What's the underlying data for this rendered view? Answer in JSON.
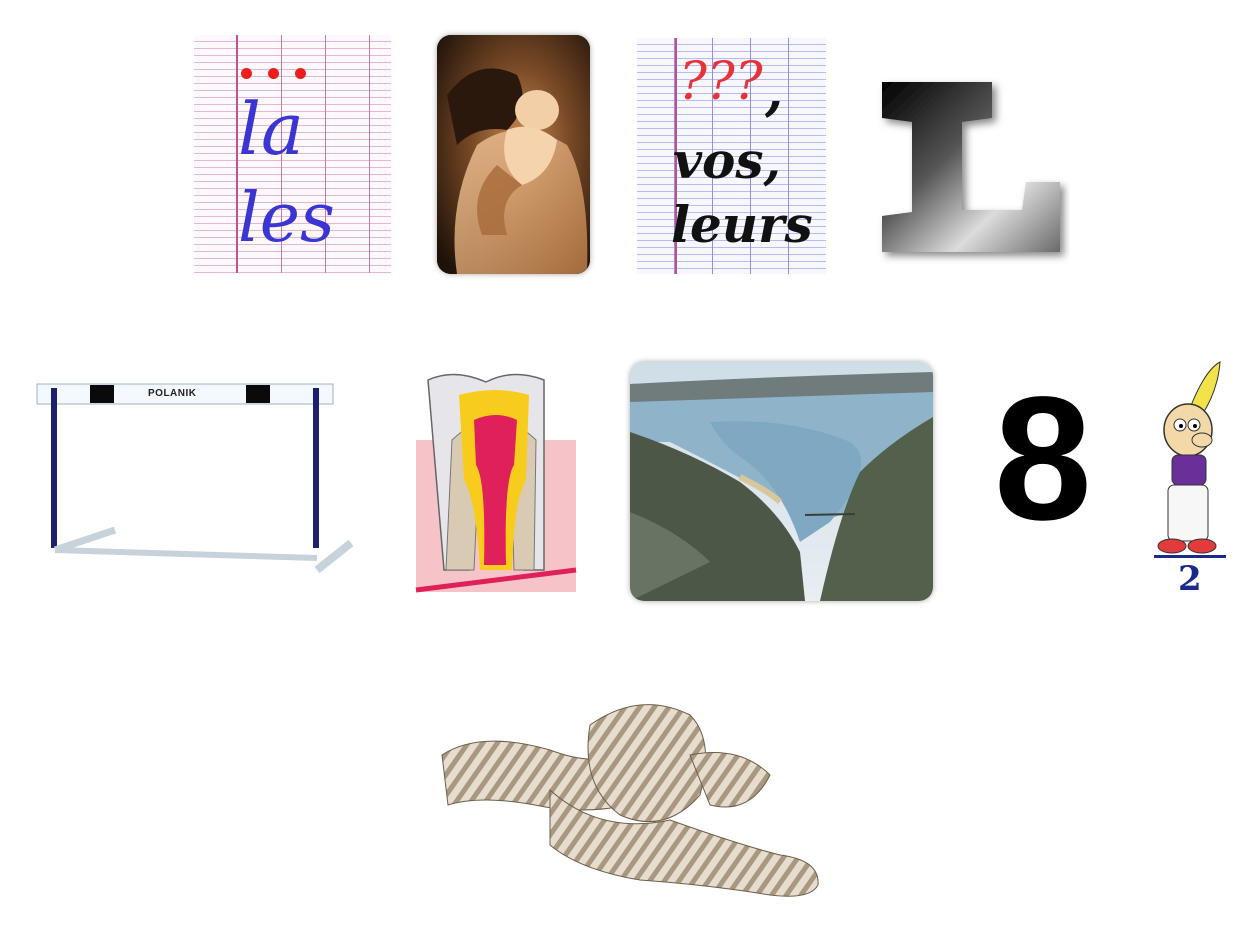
{
  "tiles": {
    "la_les": {
      "word1": "la",
      "word2": "les"
    },
    "vos_leurs": {
      "question": "???",
      "comma1": ",",
      "word1": "vos,",
      "word2": "leurs"
    },
    "big_letter": {
      "text": "L"
    },
    "hurdle": {
      "brand": "POLANIK"
    },
    "number": {
      "text": "8"
    },
    "fraction": {
      "denominator": "2"
    }
  },
  "colors": {
    "ink_blue": "#3b35d4",
    "dot_red": "#ee1d1d",
    "question_red": "#e8323a",
    "water": "#8fb4c9"
  },
  "icons": [
    "tooth-illustration",
    "lake-canyon-photo",
    "parent-baby-photo",
    "rope-knot",
    "cartoon-character"
  ]
}
